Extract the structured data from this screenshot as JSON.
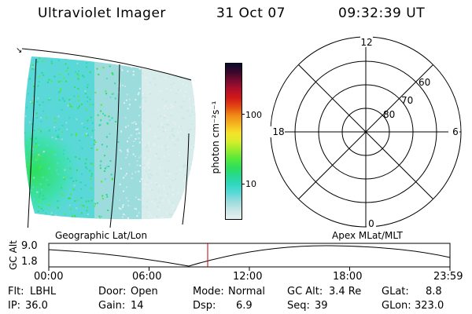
{
  "header": {
    "title": "Ultraviolet Imager",
    "date": "31 Oct 07",
    "time": "09:32:39 UT"
  },
  "colorbar": {
    "label": "photon cm⁻²s⁻¹",
    "ticks": [
      "100",
      "10"
    ],
    "colors": [
      "#e6f0f0",
      "#c8e6e6",
      "#9cdcdc",
      "#5ad8d8",
      "#2ed8c0",
      "#28d890",
      "#2ee05a",
      "#58e83a",
      "#98ec2e",
      "#d8ee2a",
      "#f6e02a",
      "#f6b41e",
      "#f08a16",
      "#e24a12",
      "#d21818",
      "#b0102a",
      "#7a0a30",
      "#3a082a",
      "#0a0a30"
    ]
  },
  "polar_plot": {
    "hour_labels": [
      "12",
      "18",
      "6",
      "0"
    ],
    "lat_labels": [
      "80",
      "70",
      "60"
    ]
  },
  "timeline": {
    "left_label": "Geographic Lat/Lon",
    "right_label": "Apex MLat/MLT",
    "axis_title": "GC Alt",
    "y_ticks": [
      "9.0",
      "1.8"
    ],
    "x_ticks": [
      "00:00",
      "06:00",
      "12:00",
      "18:00",
      "23:59"
    ],
    "marker_time": "09:32"
  },
  "info": {
    "row1": {
      "filter_label": "Flt:",
      "filter_value": "LBHL",
      "door_label": "Door:",
      "door_value": "Open",
      "mode_label": "Mode:",
      "mode_value": "Normal",
      "gcalt_label": "GC Alt:",
      "gcalt_value": "3.4 Re",
      "glat_label": "GLat:",
      "glat_value": "8.8"
    },
    "row2": {
      "ip_label": "IP:",
      "ip_value": "36.0",
      "gain_label": "Gain:",
      "gain_value": "14",
      "dsp_label": "Dsp:",
      "dsp_value": "6.9",
      "seq_label": "Seq:",
      "seq_value": "39",
      "glon_label": "GLon:",
      "glon_value": "323.0"
    }
  }
}
